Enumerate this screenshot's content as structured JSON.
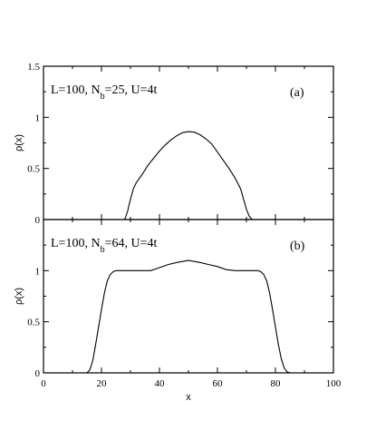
{
  "chart_data": [
    {
      "type": "line",
      "panel_label": "(a)",
      "annotation": {
        "prefix": "L=100, N",
        "sub": "b",
        "suffix": "=25, U=4t"
      },
      "ylabel": "ρ(x)",
      "xlabel": "",
      "xlim": [
        0,
        100
      ],
      "ylim": [
        0,
        1.5
      ],
      "yticks": [
        0,
        0.5,
        1,
        1.5
      ],
      "ytick_labels": [
        "0",
        "0.5",
        "1",
        "1.5"
      ],
      "series": [
        {
          "x": [
            28,
            29,
            30,
            31,
            32,
            34,
            36,
            38,
            40,
            42,
            44,
            46,
            48,
            50,
            52,
            54,
            56,
            58,
            60,
            62,
            64,
            66,
            68,
            69,
            70,
            71,
            72
          ],
          "y": [
            0,
            0.08,
            0.2,
            0.3,
            0.36,
            0.44,
            0.53,
            0.6,
            0.67,
            0.73,
            0.78,
            0.82,
            0.85,
            0.86,
            0.855,
            0.83,
            0.79,
            0.74,
            0.66,
            0.58,
            0.5,
            0.41,
            0.3,
            0.2,
            0.1,
            0.03,
            0
          ]
        }
      ]
    },
    {
      "type": "line",
      "panel_label": "(b)",
      "annotation": {
        "prefix": "L=100, N",
        "sub": "b",
        "suffix": "=64, U=4t"
      },
      "ylabel": "ρ(x)",
      "xlabel": "x",
      "xlim": [
        0,
        100
      ],
      "ylim": [
        0,
        1.5
      ],
      "xticks": [
        0,
        20,
        40,
        60,
        80,
        100
      ],
      "xtick_labels": [
        "0",
        "20",
        "40",
        "60",
        "80",
        "100"
      ],
      "yticks": [
        0,
        0.5,
        1
      ],
      "ytick_labels": [
        "0",
        "0.5",
        "1"
      ],
      "series": [
        {
          "x": [
            15,
            16,
            17,
            18,
            19,
            20,
            21,
            22,
            23,
            24,
            25,
            26,
            30,
            34,
            37,
            40,
            43,
            46,
            50,
            54,
            57,
            60,
            63,
            66,
            70,
            74,
            75,
            76,
            77,
            78,
            79,
            80,
            81,
            82,
            83,
            84,
            85
          ],
          "y": [
            0,
            0.03,
            0.12,
            0.28,
            0.45,
            0.62,
            0.78,
            0.9,
            0.96,
            0.99,
            1.0,
            1.0,
            1.0,
            1.0,
            1.0,
            1.03,
            1.06,
            1.08,
            1.1,
            1.08,
            1.06,
            1.04,
            1.01,
            1.0,
            1.0,
            1.0,
            0.99,
            0.96,
            0.9,
            0.78,
            0.62,
            0.45,
            0.28,
            0.14,
            0.05,
            0.01,
            0
          ]
        }
      ]
    }
  ]
}
